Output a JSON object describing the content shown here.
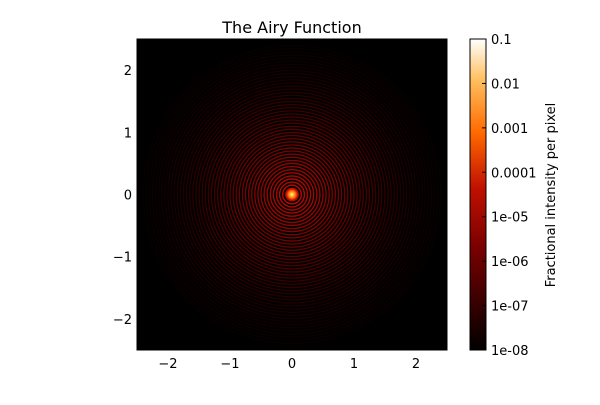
{
  "chart_data": {
    "type": "heatmap",
    "title": "The Airy Function",
    "xlabel": "",
    "ylabel": "",
    "xlim": [
      -2.5,
      2.5
    ],
    "ylim": [
      -2.5,
      2.5
    ],
    "x_ticks": [
      -2,
      -1,
      0,
      1,
      2
    ],
    "y_ticks": [
      -2,
      -1,
      0,
      1,
      2
    ],
    "x_tick_labels": [
      "−2",
      "−1",
      "0",
      "1",
      "2"
    ],
    "y_tick_labels": [
      "−2",
      "−1",
      "0",
      "1",
      "2"
    ],
    "grid": false,
    "center": [
      0,
      0
    ],
    "value_range": [
      1e-08,
      0.1
    ],
    "scale": "log",
    "colormap": "gist_heat",
    "colorbar": {
      "label": "Fractional intensity per pixel",
      "ticks": [
        0.1,
        0.01,
        0.001,
        0.0001,
        1e-05,
        1e-06,
        1e-07,
        1e-08
      ],
      "tick_labels": [
        "0.1",
        "0.01",
        "0.001",
        "0.0001",
        "1e-05",
        "1e-06",
        "1e-07",
        "1e-08"
      ],
      "placement": "right"
    }
  }
}
